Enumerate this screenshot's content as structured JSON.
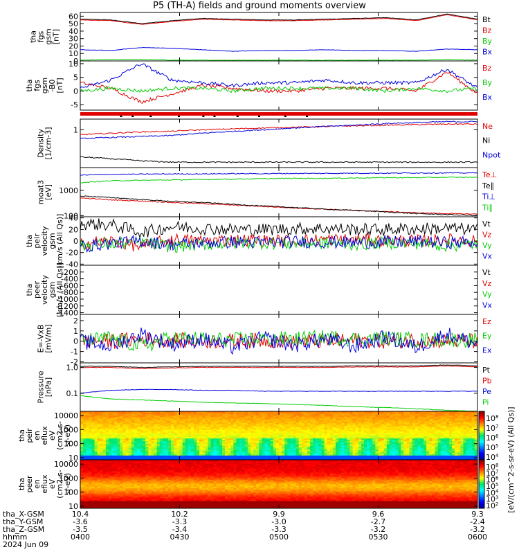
{
  "title": "P5 (TH-A) fields and ground moments overview",
  "colors": {
    "black": "#000000",
    "red": "#e00000",
    "green": "#00cc00",
    "blue": "#0000dd"
  },
  "chart_data": [
    {
      "type": "line",
      "ylabel": [
        "tha",
        "fgs",
        "gsm",
        "[nT]"
      ],
      "ylim": [
        0,
        65
      ],
      "yticks": [
        0,
        10,
        20,
        30,
        40,
        50,
        60
      ],
      "series": [
        {
          "name": "Bt",
          "color": "black",
          "values": [
            56,
            55,
            50,
            54,
            57,
            56,
            55,
            55,
            56,
            57,
            58,
            55,
            63,
            56
          ]
        },
        {
          "name": "Bz",
          "color": "red",
          "values": [
            55,
            54,
            49,
            53,
            56,
            55,
            54,
            54,
            55,
            56,
            57,
            54,
            62,
            55
          ]
        },
        {
          "name": "By",
          "color": "green",
          "values": [
            1,
            2,
            2,
            1,
            1,
            1,
            1,
            1,
            1,
            1,
            1,
            1,
            2,
            1
          ]
        },
        {
          "name": "Bx",
          "color": "blue",
          "values": [
            15,
            14,
            18,
            17,
            15,
            13,
            14,
            14,
            15,
            14,
            14,
            13,
            16,
            15
          ]
        }
      ]
    },
    {
      "type": "line",
      "ylabel": [
        "tha",
        "fgs",
        "gsm",
        "-B0",
        "[nT]"
      ],
      "ylim": [
        -7,
        11
      ],
      "yticks": [
        -5,
        0,
        5,
        10
      ],
      "series": [
        {
          "name": "Bz",
          "color": "red",
          "values": [
            3,
            1,
            -4,
            -1,
            2,
            1,
            0,
            0,
            1,
            1,
            1,
            0,
            7,
            -1
          ]
        },
        {
          "name": "By",
          "color": "green",
          "values": [
            0,
            1,
            0,
            1,
            1,
            0,
            1,
            1,
            1,
            1,
            0,
            1,
            0,
            1
          ]
        },
        {
          "name": "Bx",
          "color": "blue",
          "values": [
            1,
            4,
            10,
            4,
            3,
            2,
            3,
            3,
            4,
            3,
            3,
            3,
            8,
            1
          ]
        }
      ]
    },
    {
      "type": "line",
      "log": true,
      "ylabel": [
        "Density",
        "[1/cm-3]"
      ],
      "ylim": [
        0.02,
        3
      ],
      "yticks": [
        1
      ],
      "yticklabels": [
        "1"
      ],
      "series": [
        {
          "name": "Ne",
          "color": "red",
          "values": [
            0.6,
            0.7,
            0.8,
            0.85,
            1.0,
            1.1,
            1.2,
            1.3,
            1.4,
            1.5,
            1.6,
            1.7,
            1.8,
            1.8
          ]
        },
        {
          "name": "Ni",
          "color": "black",
          "values": [
            0.06,
            0.05,
            0.04,
            0.035,
            0.035,
            0.035,
            0.035,
            0.035,
            0.035,
            0.035,
            0.035,
            0.035,
            0.035,
            0.035
          ]
        },
        {
          "name": "Npot",
          "color": "blue",
          "values": [
            0.4,
            0.45,
            0.5,
            0.55,
            0.7,
            0.85,
            1.0,
            1.2,
            1.4,
            1.6,
            1.9,
            2.1,
            2.3,
            2.3
          ]
        }
      ]
    },
    {
      "type": "line",
      "log": true,
      "ylabel": [
        "moat3",
        "[eV]"
      ],
      "ylim": [
        90,
        8000
      ],
      "yticks": [
        100,
        1000
      ],
      "yticklabels": [
        "100",
        "1000"
      ],
      "series": [
        {
          "name": "Te⊥",
          "color": "red",
          "values": [
            500,
            420,
            380,
            330,
            300,
            260,
            230,
            200,
            180,
            160,
            145,
            130,
            120,
            115
          ]
        },
        {
          "name": "Te∥",
          "color": "black",
          "values": [
            600,
            520,
            430,
            370,
            330,
            280,
            240,
            210,
            180,
            160,
            140,
            120,
            110,
            100
          ]
        },
        {
          "name": "Ti⊥",
          "color": "blue",
          "values": [
            4000,
            4300,
            4400,
            4500,
            4500,
            4600,
            4600,
            4700,
            4700,
            4800,
            4800,
            4900,
            4900,
            4900
          ]
        },
        {
          "name": "Ti∥",
          "color": "green",
          "values": [
            2000,
            2400,
            2500,
            2600,
            2700,
            2800,
            2900,
            3000,
            3000,
            3100,
            3200,
            3200,
            3300,
            3300
          ]
        }
      ]
    },
    {
      "type": "line",
      "ylabel": [
        "tha",
        "peir",
        "velocity",
        "gsm",
        "[km/s (All Qs)]"
      ],
      "ylim": [
        -42,
        42
      ],
      "yticks": [
        -40,
        -20,
        0,
        20,
        40
      ],
      "series": [
        {
          "name": "Vt",
          "color": "black",
          "values": [
            30,
            28,
            15,
            25,
            22,
            20,
            20,
            21,
            22,
            20,
            20,
            21,
            22,
            20
          ]
        },
        {
          "name": "Vz",
          "color": "red",
          "values": [
            -5,
            0,
            -10,
            3,
            0,
            2,
            1,
            0,
            3,
            2,
            1,
            0,
            2,
            1
          ]
        },
        {
          "name": "Vy",
          "color": "green",
          "values": [
            -8,
            -5,
            -2,
            -10,
            -6,
            -4,
            -3,
            -5,
            -4,
            -6,
            -3,
            -4,
            -8,
            -5
          ]
        },
        {
          "name": "Vx",
          "color": "blue",
          "values": [
            -10,
            -4,
            0,
            -6,
            -3,
            -2,
            -3,
            -1,
            -2,
            -3,
            -2,
            -1,
            -3,
            -2
          ]
        }
      ]
    },
    {
      "type": "line",
      "ylabel": [
        "tha",
        "peer",
        "velocity",
        "gsm",
        "[km/s (All Qs)]"
      ],
      "ylim": [
        -1450,
        0
      ],
      "yticks": [
        -1400,
        -1200,
        -1000,
        -800,
        -600,
        -400,
        -200
      ],
      "series": [
        {
          "name": "Vt",
          "color": "black",
          "values": []
        },
        {
          "name": "Vz",
          "color": "red",
          "values": []
        },
        {
          "name": "Vy",
          "color": "green",
          "values": []
        },
        {
          "name": "Vx",
          "color": "blue",
          "values": []
        }
      ]
    },
    {
      "type": "line",
      "ylabel": [
        "E=-VxB",
        "[mV/m]"
      ],
      "ylim": [
        -2.1,
        2.6
      ],
      "yticks": [
        -2,
        -1,
        0,
        1,
        2
      ],
      "series": [
        {
          "name": "Ez",
          "color": "red",
          "values": [
            0.1,
            0,
            0.2,
            0.1,
            0,
            0,
            0.1,
            0,
            0,
            0.1,
            0,
            0.1,
            0,
            0
          ]
        },
        {
          "name": "Ey",
          "color": "green",
          "values": [
            0,
            0.3,
            -0.5,
            0.3,
            0.2,
            0.1,
            0.3,
            0.2,
            0.4,
            0.2,
            0.3,
            0.1,
            0.2,
            0.1
          ]
        },
        {
          "name": "Ex",
          "color": "blue",
          "values": [
            0,
            -0.5,
            0.7,
            -0.3,
            0.2,
            -0.6,
            0.3,
            -0.4,
            0.2,
            -0.5,
            0.4,
            -0.6,
            0.7,
            -0.3
          ]
        }
      ]
    },
    {
      "type": "line",
      "log": true,
      "ylabel": [
        "Pressure",
        "[nPa]"
      ],
      "ylim": [
        0.02,
        1.5
      ],
      "yticks": [
        0.1,
        1
      ],
      "yticklabels": [
        "0.1",
        "1.0"
      ],
      "series": [
        {
          "name": "Pt",
          "color": "black",
          "values": [
            1.1,
            1.1,
            1.0,
            1.05,
            1.1,
            1.1,
            1.1,
            1.1,
            1.1,
            1.15,
            1.15,
            1.15,
            1.25,
            1.15
          ]
        },
        {
          "name": "Pb",
          "color": "red",
          "values": [
            1.0,
            1.0,
            0.9,
            0.95,
            1.0,
            1.0,
            1.0,
            1.0,
            1.0,
            1.05,
            1.05,
            1.05,
            1.15,
            1.05
          ]
        },
        {
          "name": "Pe",
          "color": "blue",
          "values": [
            0.1,
            0.13,
            0.14,
            0.14,
            0.13,
            0.13,
            0.12,
            0.12,
            0.12,
            0.12,
            0.12,
            0.12,
            0.12,
            0.12
          ]
        },
        {
          "name": "Pi",
          "color": "green",
          "values": [
            0.08,
            0.06,
            0.055,
            0.05,
            0.045,
            0.042,
            0.04,
            0.037,
            0.034,
            0.03,
            0.028,
            0.025,
            0.022,
            0.02
          ]
        }
      ]
    },
    {
      "type": "heatmap",
      "log": true,
      "ylabel": [
        "tha",
        "peir",
        "en",
        "eflux",
        "eV",
        "(cm2-s-",
        "sr-eV)"
      ],
      "ylim": [
        7,
        20000
      ],
      "yticks": [
        10,
        100,
        1000,
        10000
      ],
      "yticklabels": [
        "10",
        "100",
        "1000",
        "10000"
      ]
    },
    {
      "type": "heatmap",
      "log": true,
      "ylabel": [
        "tha",
        "peer",
        "en",
        "eflux",
        "eV",
        "(cm2-s-",
        "sr-eV)"
      ],
      "ylim": [
        7,
        20000
      ],
      "yticks": [
        10,
        100,
        1000,
        10000
      ],
      "yticklabels": [
        "10",
        "100",
        "1000",
        "10000"
      ]
    }
  ],
  "colorbars": [
    {
      "ticks": [
        "10^8",
        "10^7",
        "10^6",
        "10^5",
        "10^4"
      ],
      "label": "[eV/(cm2-s-sr-eV)]"
    },
    {
      "ticks": [
        "10^8",
        "10^7",
        "10^6",
        "10^5",
        "10^4",
        "10^3",
        "10^2"
      ],
      "label": "[eV/(cm2-s-sr-eV)]"
    }
  ],
  "colorbar_side_label": "[eV/(cm^2-s-sr-eV) (All Qs)]",
  "footer": {
    "rows": [
      {
        "label": "tha_X-GSM",
        "values": [
          "10.4",
          "10.2",
          "9.9",
          "9.6",
          "9.3"
        ]
      },
      {
        "label": "tha_Y-GSM",
        "values": [
          "-3.6",
          "-3.3",
          "-3.0",
          "-2.7",
          "-2.4"
        ]
      },
      {
        "label": "tha_Z-GSM",
        "values": [
          "-3.5",
          "-3.4",
          "-3.3",
          "-3.2",
          "-3.2"
        ]
      },
      {
        "label": "hhmm",
        "values": [
          "0400",
          "0430",
          "0500",
          "0530",
          "0600"
        ]
      }
    ],
    "date": "2024 Jun 09"
  }
}
